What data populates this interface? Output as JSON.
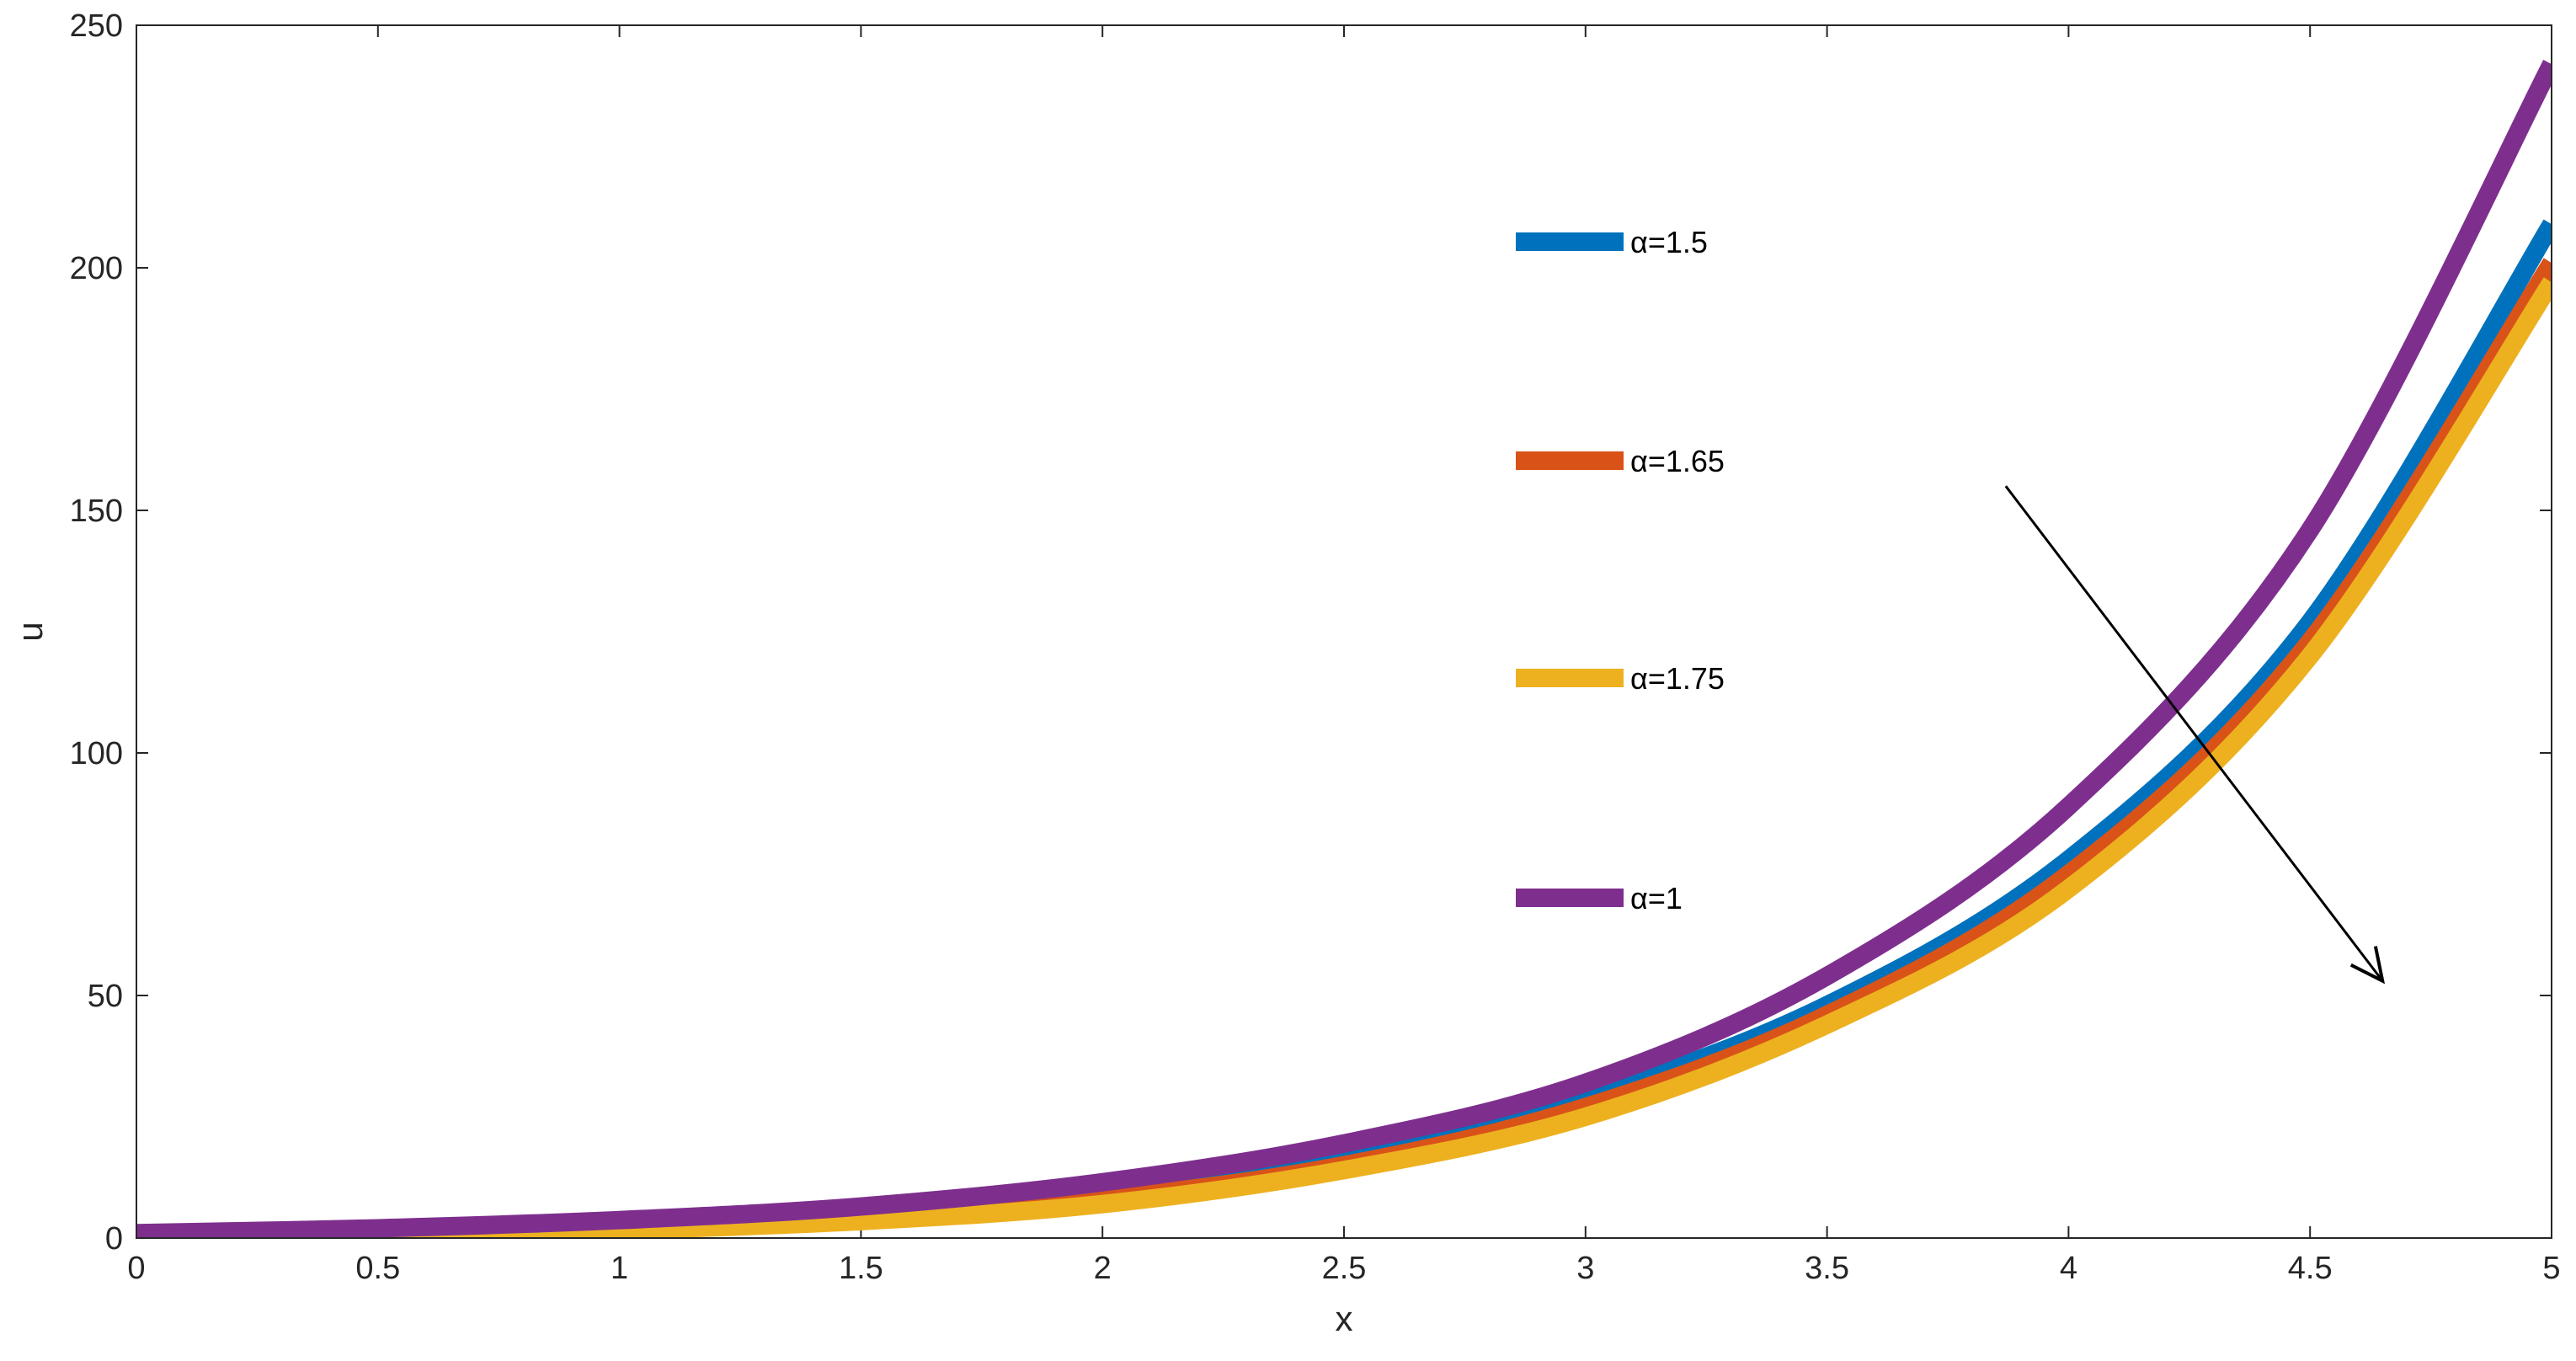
{
  "chart_data": {
    "type": "line",
    "xlabel": "x",
    "ylabel": "u",
    "xlim": [
      0,
      5
    ],
    "ylim": [
      0,
      250
    ],
    "x_ticks": [
      "0",
      "0.5",
      "1",
      "1.5",
      "2",
      "2.5",
      "3",
      "3.5",
      "4",
      "4.5",
      "5"
    ],
    "y_ticks": [
      "0",
      "50",
      "100",
      "150",
      "200",
      "250"
    ],
    "grid": false,
    "x": [
      0,
      0.5,
      1,
      1.5,
      2,
      2.5,
      3,
      3.5,
      4,
      4.5,
      5
    ],
    "series": [
      {
        "name": "α=1.5",
        "color": "#0072BD",
        "values": [
          0,
          1.0,
          2.5,
          5.0,
          9.5,
          17,
          29,
          48,
          78,
          127,
          209
        ]
      },
      {
        "name": "α=1.65",
        "color": "#D95319",
        "values": [
          0,
          0.8,
          2.0,
          4.0,
          8.0,
          15,
          27,
          46,
          75,
          123,
          201
        ]
      },
      {
        "name": "α=1.75",
        "color": "#EDB120",
        "values": [
          0,
          0.6,
          1.6,
          3.5,
          7.0,
          14,
          25,
          44,
          72,
          120,
          197
        ]
      },
      {
        "name": "α=1",
        "color": "#7E2F8E",
        "values": [
          1,
          2.0,
          3.7,
          6.5,
          11.5,
          19.5,
          32,
          54,
          89,
          146,
          242
        ]
      }
    ],
    "legend_placement": "center-right",
    "annotations": [
      {
        "type": "arrow",
        "from": [
          3.87,
          155
        ],
        "to": [
          4.65,
          53
        ]
      }
    ]
  }
}
